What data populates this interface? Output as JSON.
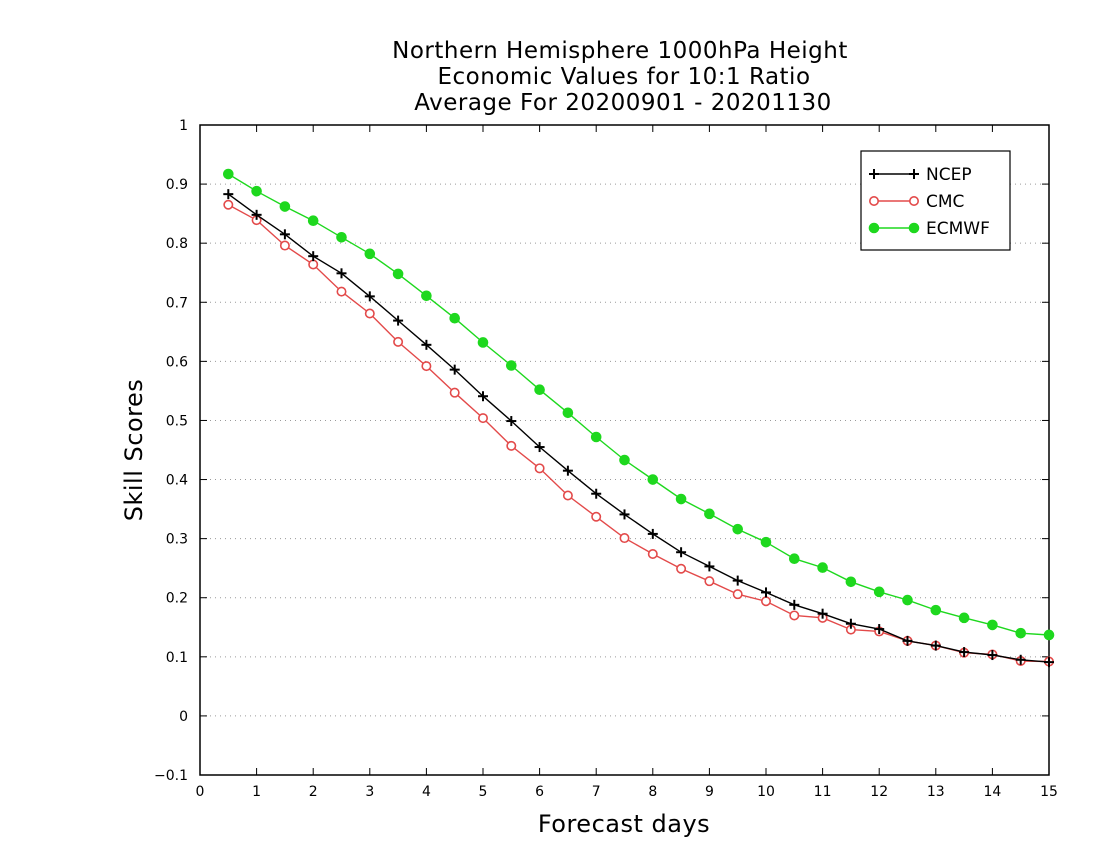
{
  "chart_data": {
    "type": "line",
    "title": [
      "Northern Hemisphere 1000hPa Height",
      "Economic Values for 10:1 Ratio",
      "Average For 20200901 - 20201130"
    ],
    "xlabel": "Forecast days",
    "ylabel": "Skill Scores",
    "xlim": [
      0,
      15
    ],
    "ylim": [
      -0.1,
      1
    ],
    "xticks": [
      "0",
      "1",
      "2",
      "3",
      "4",
      "5",
      "6",
      "7",
      "8",
      "9",
      "10",
      "11",
      "12",
      "13",
      "14",
      "15"
    ],
    "yticks": [
      "−0.1",
      "0",
      "0.1",
      "0.2",
      "0.3",
      "0.4",
      "0.5",
      "0.6",
      "0.7",
      "0.8",
      "0.9",
      "1"
    ],
    "grid": "dotted horizontal",
    "legend_position": "top-right",
    "x": [
      0.5,
      1,
      1.5,
      2,
      2.5,
      3,
      3.5,
      4,
      4.5,
      5,
      5.5,
      6,
      6.5,
      7,
      7.5,
      8,
      8.5,
      9,
      9.5,
      10,
      10.5,
      11,
      11.5,
      12,
      12.5,
      13,
      13.5,
      14,
      14.5,
      15
    ],
    "series": [
      {
        "name": "NCEP",
        "color": "#000000",
        "marker": "plus",
        "values": [
          0.883,
          0.848,
          0.815,
          0.778,
          0.749,
          0.71,
          0.669,
          0.628,
          0.586,
          0.541,
          0.499,
          0.455,
          0.415,
          0.376,
          0.341,
          0.308,
          0.277,
          0.253,
          0.229,
          0.209,
          0.188,
          0.173,
          0.156,
          0.147,
          0.127,
          0.119,
          0.108,
          0.103,
          0.095,
          0.091
        ]
      },
      {
        "name": "CMC",
        "color": "#e34a4a",
        "marker": "open-circle",
        "values": [
          0.865,
          0.839,
          0.796,
          0.764,
          0.718,
          0.681,
          0.633,
          0.592,
          0.547,
          0.504,
          0.457,
          0.419,
          0.373,
          0.337,
          0.301,
          0.274,
          0.249,
          0.228,
          0.206,
          0.194,
          0.17,
          0.166,
          0.146,
          0.143,
          0.127,
          0.119,
          0.107,
          0.104,
          0.093,
          0.092
        ]
      },
      {
        "name": "ECMWF",
        "color": "#1ed81e",
        "marker": "filled-circle",
        "values": [
          0.917,
          0.888,
          0.862,
          0.838,
          0.81,
          0.782,
          0.748,
          0.711,
          0.673,
          0.632,
          0.593,
          0.552,
          0.513,
          0.472,
          0.433,
          0.4,
          0.367,
          0.342,
          0.316,
          0.294,
          0.266,
          0.251,
          0.227,
          0.21,
          0.196,
          0.179,
          0.166,
          0.154,
          0.14,
          0.137
        ]
      }
    ]
  }
}
